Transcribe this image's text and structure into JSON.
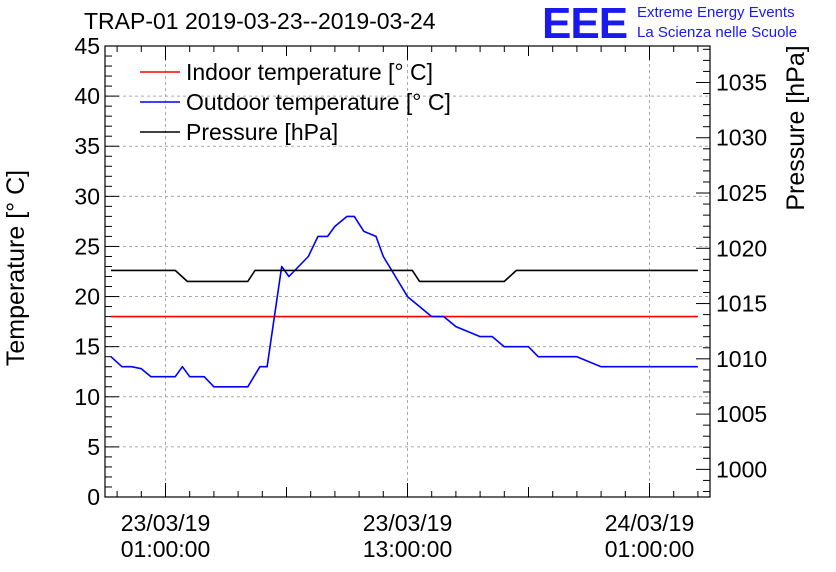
{
  "chart_data": {
    "type": "line",
    "title": "TRAP-01 2019-03-23--2019-03-24",
    "ylabel_left": "Temperature [° C]",
    "ylabel_right": "Pressure [hPa]",
    "ylim_left": [
      0,
      45
    ],
    "ylim_right": [
      997.5,
      1038.3
    ],
    "xlim": [
      -1.5,
      23.5
    ],
    "left_ticks": [
      "0",
      "5",
      "10",
      "15",
      "20",
      "25",
      "30",
      "35",
      "40",
      "45"
    ],
    "right_ticks": [
      "1000",
      "1005",
      "1010",
      "1015",
      "1020",
      "1025",
      "1030",
      "1035"
    ],
    "x_ticks": [
      {
        "x": 1,
        "date": "23/03/19",
        "time": "01:00:00"
      },
      {
        "x": 11,
        "date": "23/03/19",
        "time": "13:00:00"
      },
      {
        "x": 21,
        "date": "24/03/19",
        "time": "01:00:00"
      }
    ],
    "grid": true,
    "legend_position": "top-left",
    "series": [
      {
        "name": "Indoor temperature [° C]",
        "axis": "left",
        "color": "#ff0000",
        "x": [
          -1.25,
          23
        ],
        "y": [
          18,
          18
        ]
      },
      {
        "name": "Outdoor temperature [° C]",
        "axis": "left",
        "color": "#0000ff",
        "x": [
          -1.25,
          -0.8,
          -0.4,
          0,
          0.4,
          1.4,
          1.7,
          2,
          2.6,
          3,
          4.4,
          4.9,
          5.2,
          5.5,
          5.8,
          6.1,
          6.5,
          6.9,
          7.3,
          7.7,
          8,
          8.5,
          8.8,
          9.2,
          9.7,
          10,
          10.5,
          11,
          11.5,
          12,
          12.5,
          13,
          13.5,
          14,
          14.5,
          15,
          16,
          16.4,
          17.2,
          18,
          19,
          20,
          23
        ],
        "y": [
          14,
          13,
          13,
          12.8,
          12,
          12,
          13,
          12,
          12,
          11,
          11,
          13,
          13,
          18,
          23,
          22,
          23,
          24,
          26,
          26,
          27,
          28,
          28,
          26.5,
          26,
          24,
          22,
          20,
          19,
          18,
          18,
          17,
          16.5,
          16,
          16,
          15,
          15,
          14,
          14,
          14,
          13,
          13,
          13
        ]
      },
      {
        "name": "Pressure [hPa]",
        "axis": "right",
        "color": "#000000",
        "x": [
          -1.25,
          1.4,
          1.9,
          4.4,
          4.7,
          11.2,
          11.5,
          15,
          15.5,
          19,
          23
        ],
        "y": [
          1018,
          1018,
          1017,
          1017,
          1018,
          1018,
          1017,
          1017,
          1018,
          1018,
          1018
        ]
      }
    ]
  },
  "logo": {
    "mark": "EEE",
    "line1": "Extreme Energy Events",
    "line2": "La Scienza nelle Scuole"
  }
}
